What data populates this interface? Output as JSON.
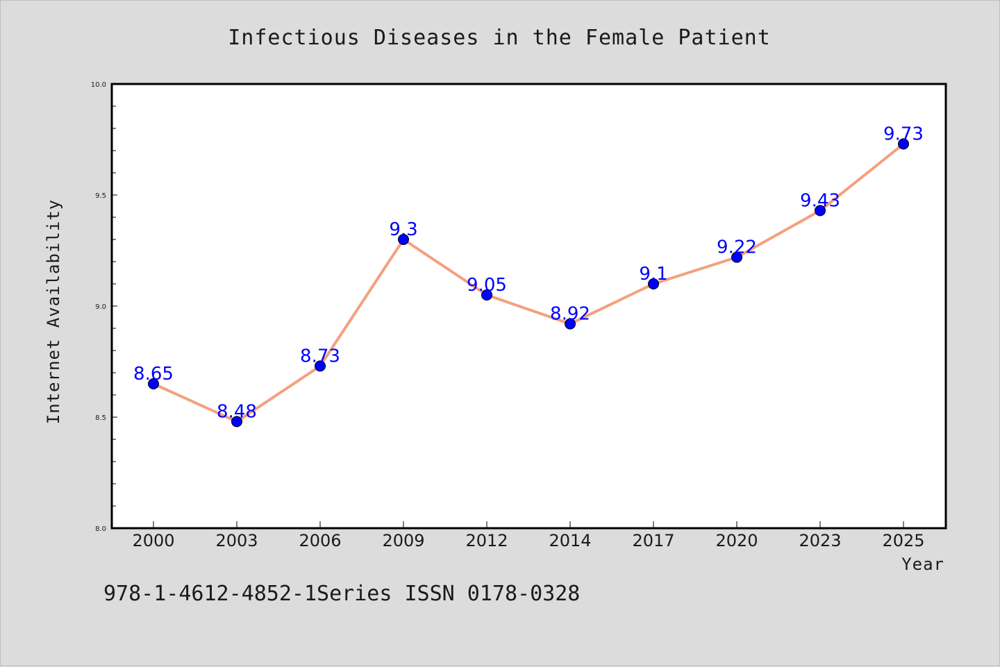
{
  "chart_data": {
    "type": "line",
    "title": "Infectious Diseases in the Female Patient",
    "xlabel": "Year",
    "ylabel": "Internet Availability",
    "categories": [
      "2000",
      "2003",
      "2006",
      "2009",
      "2012",
      "2014",
      "2017",
      "2020",
      "2023",
      "2025"
    ],
    "series": [
      {
        "values": [
          8.65,
          8.48,
          8.73,
          9.3,
          9.05,
          8.92,
          9.1,
          9.22,
          9.43,
          9.73
        ],
        "data_labels": [
          "8.65",
          "8.48",
          "8.73",
          "9.3",
          "9.05",
          "8.92",
          "9.1",
          "9.22",
          "9.43",
          "9.73"
        ],
        "line_color": "#f4a07e",
        "marker_color": "#0000ff"
      }
    ],
    "ylim": [
      8.0,
      10.0
    ],
    "yticks": [
      "8.0",
      "8.5",
      "9.0",
      "9.5",
      "10.0"
    ],
    "grid": false,
    "legend": "none"
  },
  "footer": "978-1-4612-4852-1Series ISSN 0178-0328",
  "colors": {
    "background": "#dcdcdc",
    "plot_area": "#ffffff",
    "line": "#f4a07e",
    "marker": "#0000ff",
    "data_label": "#0000ff"
  }
}
